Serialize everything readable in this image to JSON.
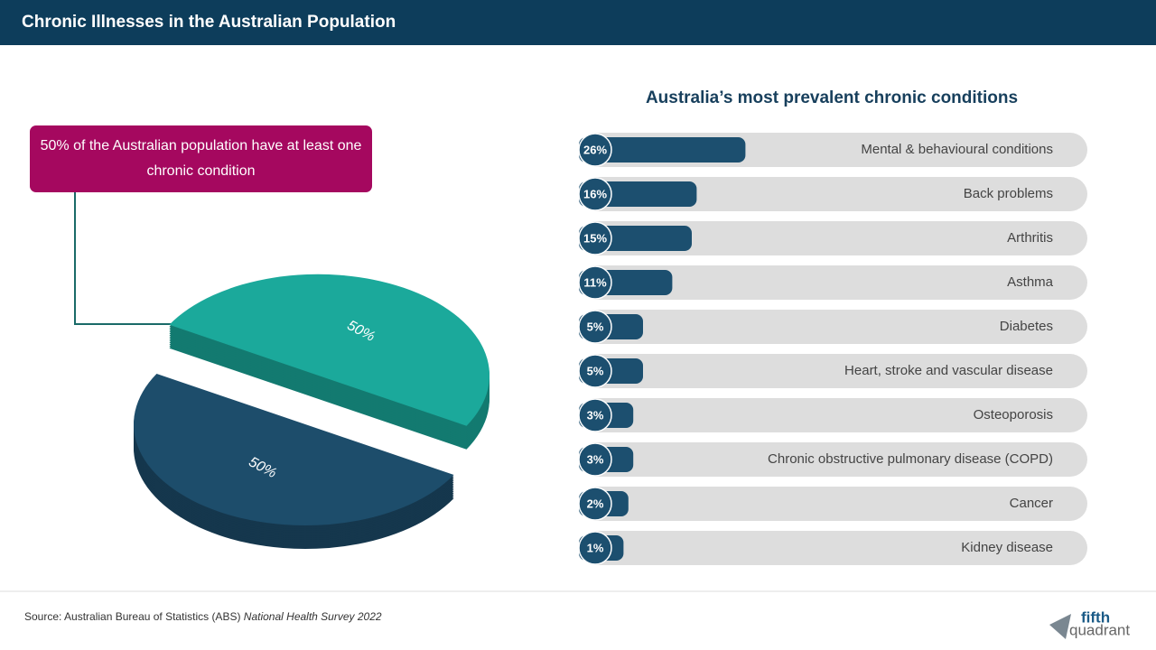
{
  "header": {
    "title": "Chronic Illnesses in the Australian Population"
  },
  "callout": {
    "text": "50% of the Australian population have at least one chronic condition"
  },
  "chart_data": [
    {
      "type": "pie",
      "values": [
        50,
        50
      ],
      "value_labels": [
        "50%",
        "50%"
      ],
      "colors": [
        "#1ba99b",
        "#1d4d6b"
      ]
    },
    {
      "type": "bar",
      "title": "Australia’s most prevalent chronic conditions",
      "categories": [
        "Mental & behavioural conditions",
        "Back problems",
        "Arthritis",
        "Asthma",
        "Diabetes",
        "Heart, stroke and vascular disease",
        "Osteoporosis",
        "Chronic obstructive pulmonary disease (COPD)",
        "Cancer",
        "Kidney disease"
      ],
      "values": [
        26,
        16,
        15,
        11,
        5,
        5,
        3,
        3,
        2,
        1
      ],
      "value_labels": [
        "26%",
        "16%",
        "15%",
        "11%",
        "5%",
        "5%",
        "3%",
        "3%",
        "2%",
        "1%"
      ],
      "color": "#1c4f6f",
      "track_color": "#dddddd"
    }
  ],
  "footer": {
    "source": "Source: Australian Bureau of Statistics (ABS)",
    "source_title": "National Health Survey 2022",
    "logo": [
      "fifth",
      "quadrant"
    ]
  }
}
